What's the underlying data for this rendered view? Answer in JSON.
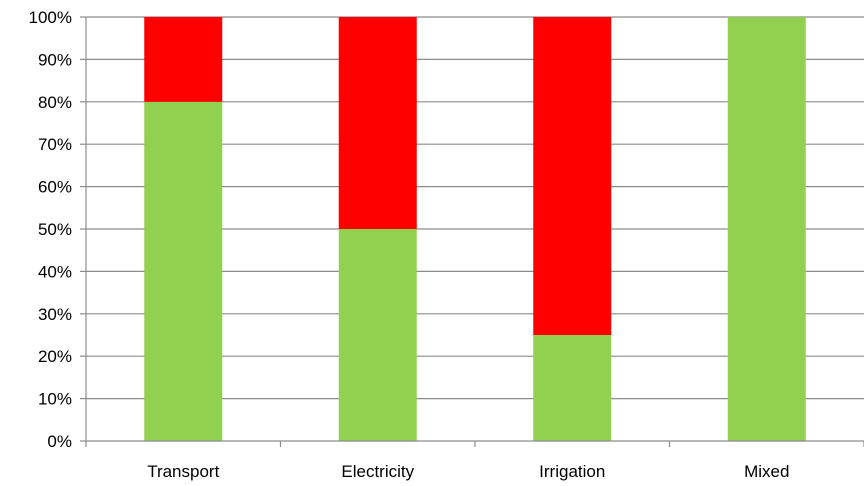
{
  "chart_data": {
    "type": "bar",
    "stacked": true,
    "categories": [
      "Transport",
      "Electricity",
      "Irrigation",
      "Mixed"
    ],
    "series": [
      {
        "values": [
          80,
          50,
          25,
          100
        ],
        "color": "#92d050"
      },
      {
        "values": [
          20,
          50,
          75,
          0
        ],
        "color": "#ff0000"
      }
    ],
    "y_ticks": [
      "0%",
      "10%",
      "20%",
      "30%",
      "40%",
      "50%",
      "60%",
      "70%",
      "80%",
      "90%",
      "100%"
    ],
    "ylim": [
      0,
      100
    ],
    "grid": true,
    "legend": "none",
    "title": "",
    "xlabel": "",
    "ylabel": ""
  }
}
